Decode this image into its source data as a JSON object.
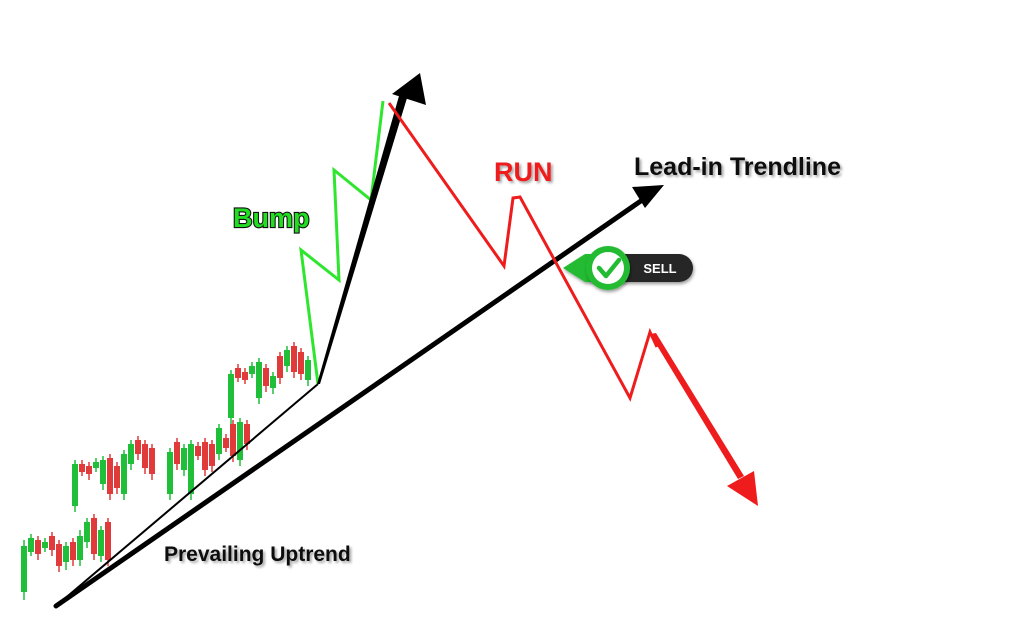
{
  "labels": {
    "bump": "Bump",
    "run": "RUN",
    "lead_in_trendline": "Lead-in Trendline",
    "prevailing_uptrend": "Prevailing Uptrend"
  },
  "signal": {
    "label": "SELL",
    "icon": "checkmark-icon"
  },
  "colors": {
    "bullish": "#1fbf3a",
    "bearish": "#e03a3a",
    "bump_line": "#2ee62e",
    "run_line": "#ee1c1c",
    "trendline": "#000000",
    "bump_label": "#22dd22",
    "run_label": "#ee1c1c",
    "signal_green": "#22bb33",
    "signal_dark": "#262626"
  }
}
